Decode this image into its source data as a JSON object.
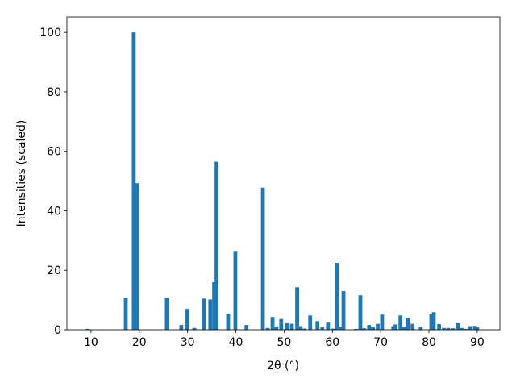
{
  "chart_data": {
    "type": "bar",
    "xlabel": "2θ (°)",
    "ylabel": "Intensities (scaled)",
    "color": "#1f77b4",
    "x": [
      9.3,
      17.2,
      18.85,
      19.5,
      25.7,
      28.7,
      29.9,
      31.4,
      33.4,
      34.7,
      35.5,
      36.0,
      38.4,
      39.9,
      42.2,
      45.6,
      46.6,
      47.6,
      48.4,
      49.4,
      50.6,
      51.6,
      52.7,
      53.4,
      54.2,
      55.4,
      56.9,
      57.9,
      59.1,
      60.1,
      60.9,
      61.8,
      62.3,
      64.9,
      65.8,
      66.6,
      67.6,
      68.4,
      69.4,
      70.3,
      72.6,
      73.1,
      74.1,
      74.8,
      75.6,
      76.6,
      78.3,
      80.5,
      81.0,
      82.1,
      83.1,
      84.0,
      85.0,
      86.0,
      86.8,
      87.6,
      88.5,
      89.5,
      90.0
    ],
    "values": [
      0.3,
      10.8,
      100,
      49.3,
      10.8,
      1.6,
      7,
      0.6,
      10.5,
      10.2,
      16,
      56.5,
      5.4,
      26.5,
      1.6,
      47.8,
      0.6,
      4.3,
      1.1,
      3.6,
      2.2,
      2,
      14.3,
      1.2,
      0.4,
      4.8,
      2.9,
      0.8,
      2.4,
      0.4,
      22.5,
      1,
      13,
      0.3,
      11.6,
      0.5,
      1.6,
      1,
      2,
      5.1,
      1.2,
      1.8,
      4.8,
      0.9,
      4,
      2,
      0.9,
      5.4,
      5.9,
      1.9,
      0.6,
      0.6,
      0.5,
      2.2,
      0.6,
      0.3,
      1.2,
      1.3,
      0.9
    ],
    "xlim": [
      5,
      94.7
    ],
    "ylim": [
      0,
      105.2
    ],
    "xticks": [
      10,
      20,
      30,
      40,
      50,
      60,
      70,
      80,
      90
    ],
    "yticks": [
      0,
      20,
      40,
      60,
      80,
      100
    ]
  }
}
